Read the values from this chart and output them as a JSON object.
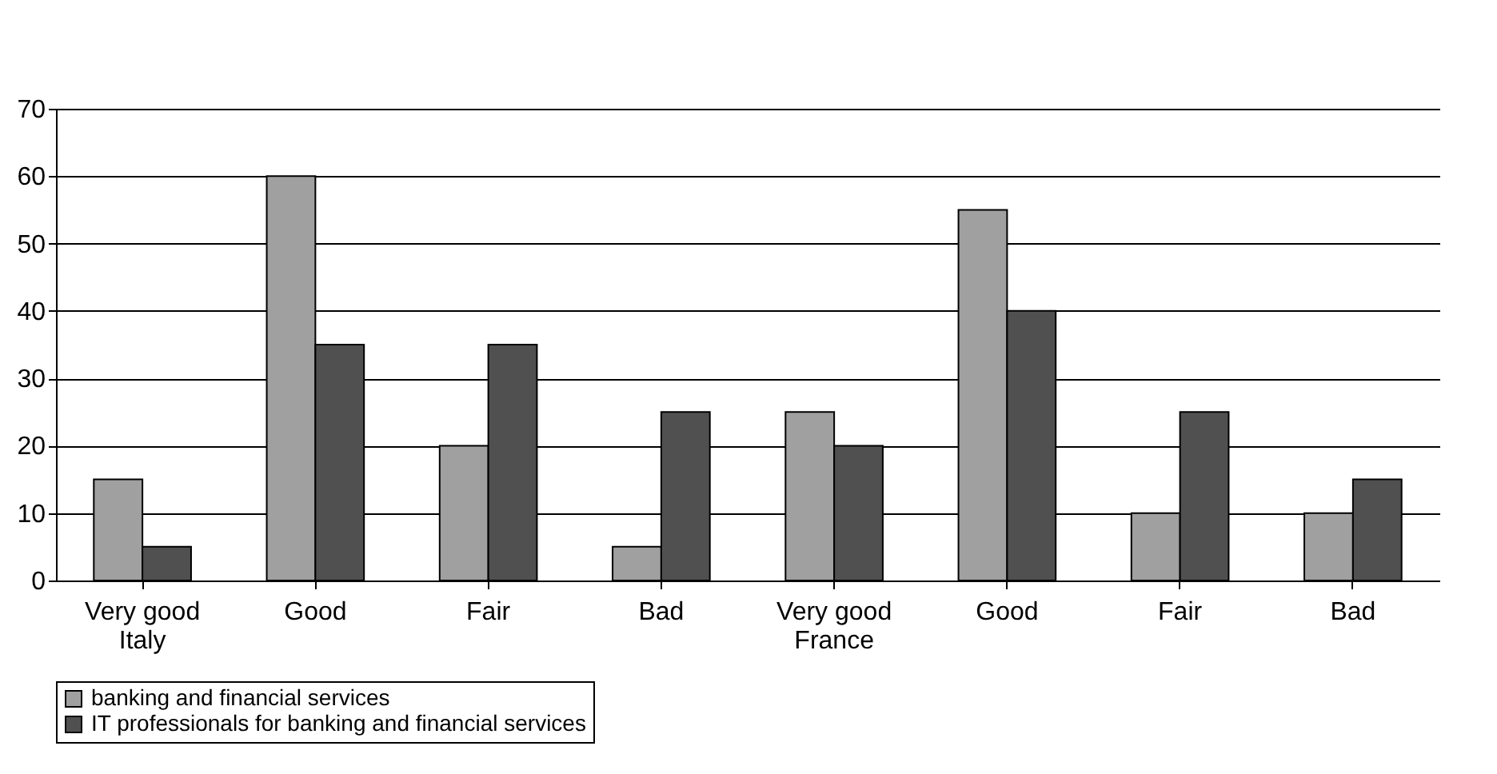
{
  "chart_data": {
    "type": "bar",
    "categories": [
      "Very good\nItaly",
      "Good",
      "Fair",
      "Bad",
      "Very good\nFrance",
      "Good",
      "Fair",
      "Bad"
    ],
    "series": [
      {
        "name": "banking and financial services",
        "color": "#a0a0a0",
        "values": [
          15,
          60,
          20,
          5,
          25,
          55,
          10,
          10
        ]
      },
      {
        "name": "IT professionals for banking and financial services",
        "color": "#505050",
        "values": [
          5,
          35,
          35,
          25,
          20,
          40,
          25,
          15
        ]
      }
    ],
    "ylim": [
      0,
      70
    ],
    "yticks": [
      0,
      10,
      20,
      30,
      40,
      50,
      60,
      70
    ],
    "grid": "y",
    "legend": "bottom"
  }
}
